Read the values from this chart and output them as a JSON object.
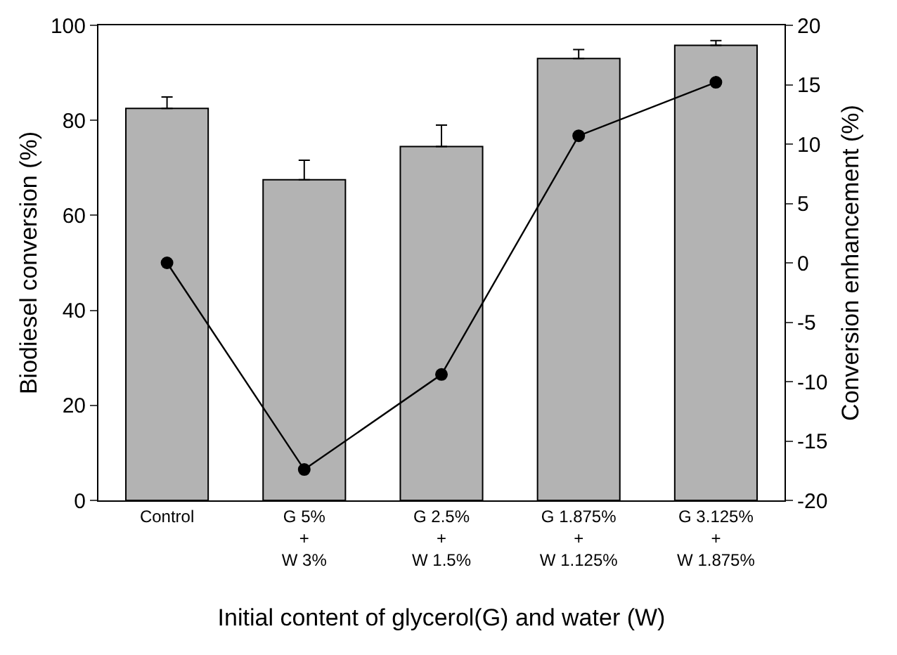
{
  "chart_data": {
    "type": "bar",
    "xlabel": "Initial content of glycerol(G) and water (W)",
    "ylabel": "Biodiesel conversion (%)",
    "y2label": "Conversion enhancement (%)",
    "categories": [
      "Control",
      "G 5%\n+\nW 3%",
      "G 2.5%\n+\nW 1.5%",
      "G 1.875%\n+\nW 1.125%",
      "G 3.125%\n+\nW 1.875%"
    ],
    "series": [
      {
        "color": "#b3b3b3",
        "values": [
          82.5,
          67.5,
          74.5,
          93.0,
          95.8
        ],
        "errors": [
          [
            82.5,
            84.9
          ],
          [
            67.5,
            71.6
          ],
          [
            74.5,
            79.0
          ],
          [
            93.0,
            94.9
          ],
          [
            95.8,
            96.8
          ]
        ]
      },
      {
        "type": "line",
        "axis": "y2",
        "color": "#000000",
        "values": [
          0,
          -17.4,
          -9.4,
          10.7,
          15.2
        ]
      }
    ],
    "ylim": [
      0,
      100
    ],
    "yticks": [
      0,
      20,
      40,
      60,
      80,
      100
    ],
    "y2lim": [
      -20,
      20
    ],
    "y2ticks": [
      -20,
      -15,
      -10,
      -5,
      0,
      5,
      10,
      15,
      20
    ],
    "marker": "circle",
    "line_style": "solid"
  }
}
